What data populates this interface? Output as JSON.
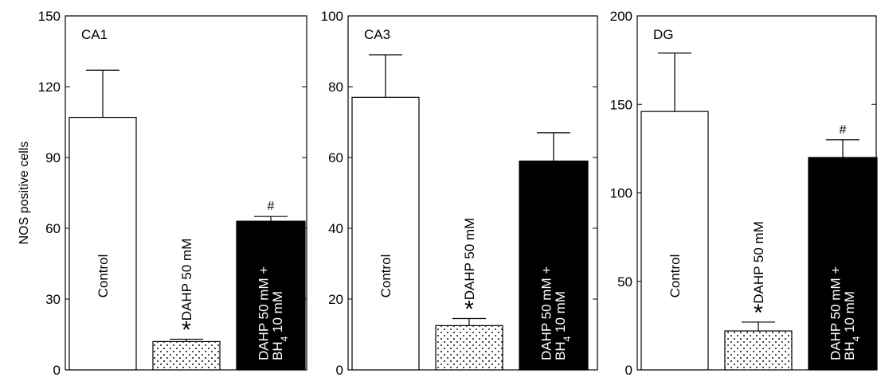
{
  "chart_data": [
    {
      "type": "bar",
      "title": "CA1",
      "ylabel": "NOS positive cells",
      "ylim": [
        0,
        150
      ],
      "yticks": [
        0,
        30,
        60,
        90,
        120,
        150
      ],
      "categories": [
        "Control",
        "DAHP 50 mM",
        "DAHP 50 mM + BH4 10 mM"
      ],
      "values": [
        107,
        12,
        63
      ],
      "errors": [
        20,
        1,
        2
      ],
      "annotations": [
        "",
        "*",
        "#"
      ]
    },
    {
      "type": "bar",
      "title": "CA3",
      "ylim": [
        0,
        100
      ],
      "yticks": [
        0,
        20,
        40,
        60,
        80,
        100
      ],
      "categories": [
        "Control",
        "DAHP 50 mM",
        "DAHP 50 mM + BH4 10 mM"
      ],
      "values": [
        77,
        12.5,
        59
      ],
      "errors": [
        12,
        2,
        8
      ],
      "annotations": [
        "",
        "*",
        ""
      ]
    },
    {
      "type": "bar",
      "title": "DG",
      "ylim": [
        0,
        200
      ],
      "yticks": [
        0,
        50,
        100,
        150,
        200
      ],
      "categories": [
        "Control",
        "DAHP 50 mM",
        "DAHP 50 mM + BH4 10 mM"
      ],
      "values": [
        146,
        22,
        120
      ],
      "errors": [
        33,
        5,
        10
      ],
      "annotations": [
        "",
        "*",
        "#"
      ]
    }
  ],
  "bar_styles": [
    "white",
    "dotted",
    "black"
  ],
  "bar_label_lines": [
    [
      "Control"
    ],
    [
      "DAHP 50 mM"
    ],
    [
      "DAHP 50 mM +",
      "BH",
      "4",
      " 10 mM"
    ]
  ]
}
